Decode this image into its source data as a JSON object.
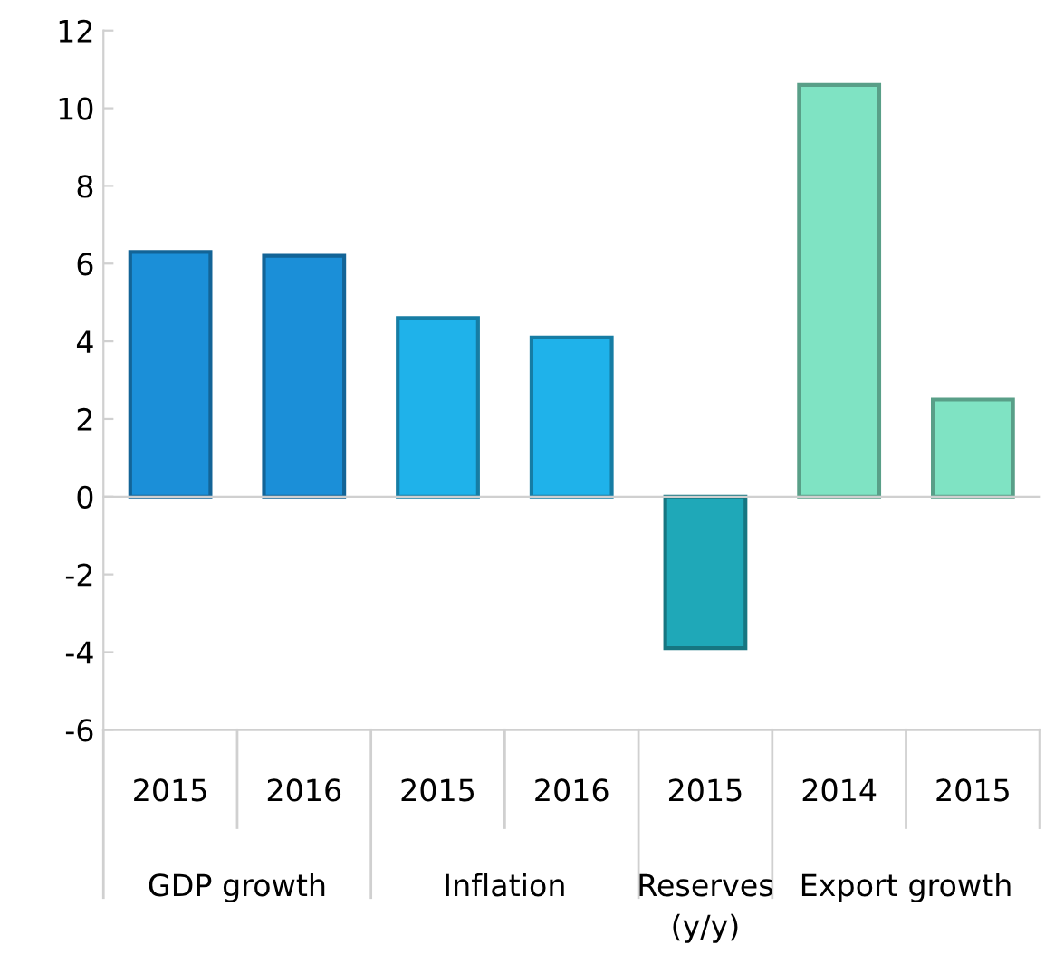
{
  "chart_data": {
    "type": "bar",
    "categories": [
      "2015",
      "2016",
      "2015",
      "2016",
      "2015",
      "2014",
      "2015"
    ],
    "values": [
      6.3,
      6.2,
      4.6,
      4.1,
      -3.9,
      10.6,
      2.5
    ],
    "colors": [
      "#1b8fd8",
      "#1b8fd8",
      "#1fb2ea",
      "#1fb2ea",
      "#1fa8b8",
      "#7fe3c3",
      "#7fe3c3"
    ],
    "annotations": [
      "GDP growth",
      "Inflation",
      "Reserves\n(y/y)",
      "Export growth"
    ],
    "ylim": [
      -6,
      12
    ],
    "yticks": [
      -6,
      -4,
      -2,
      0,
      2,
      4,
      6,
      8,
      10,
      12
    ],
    "legend": false
  }
}
